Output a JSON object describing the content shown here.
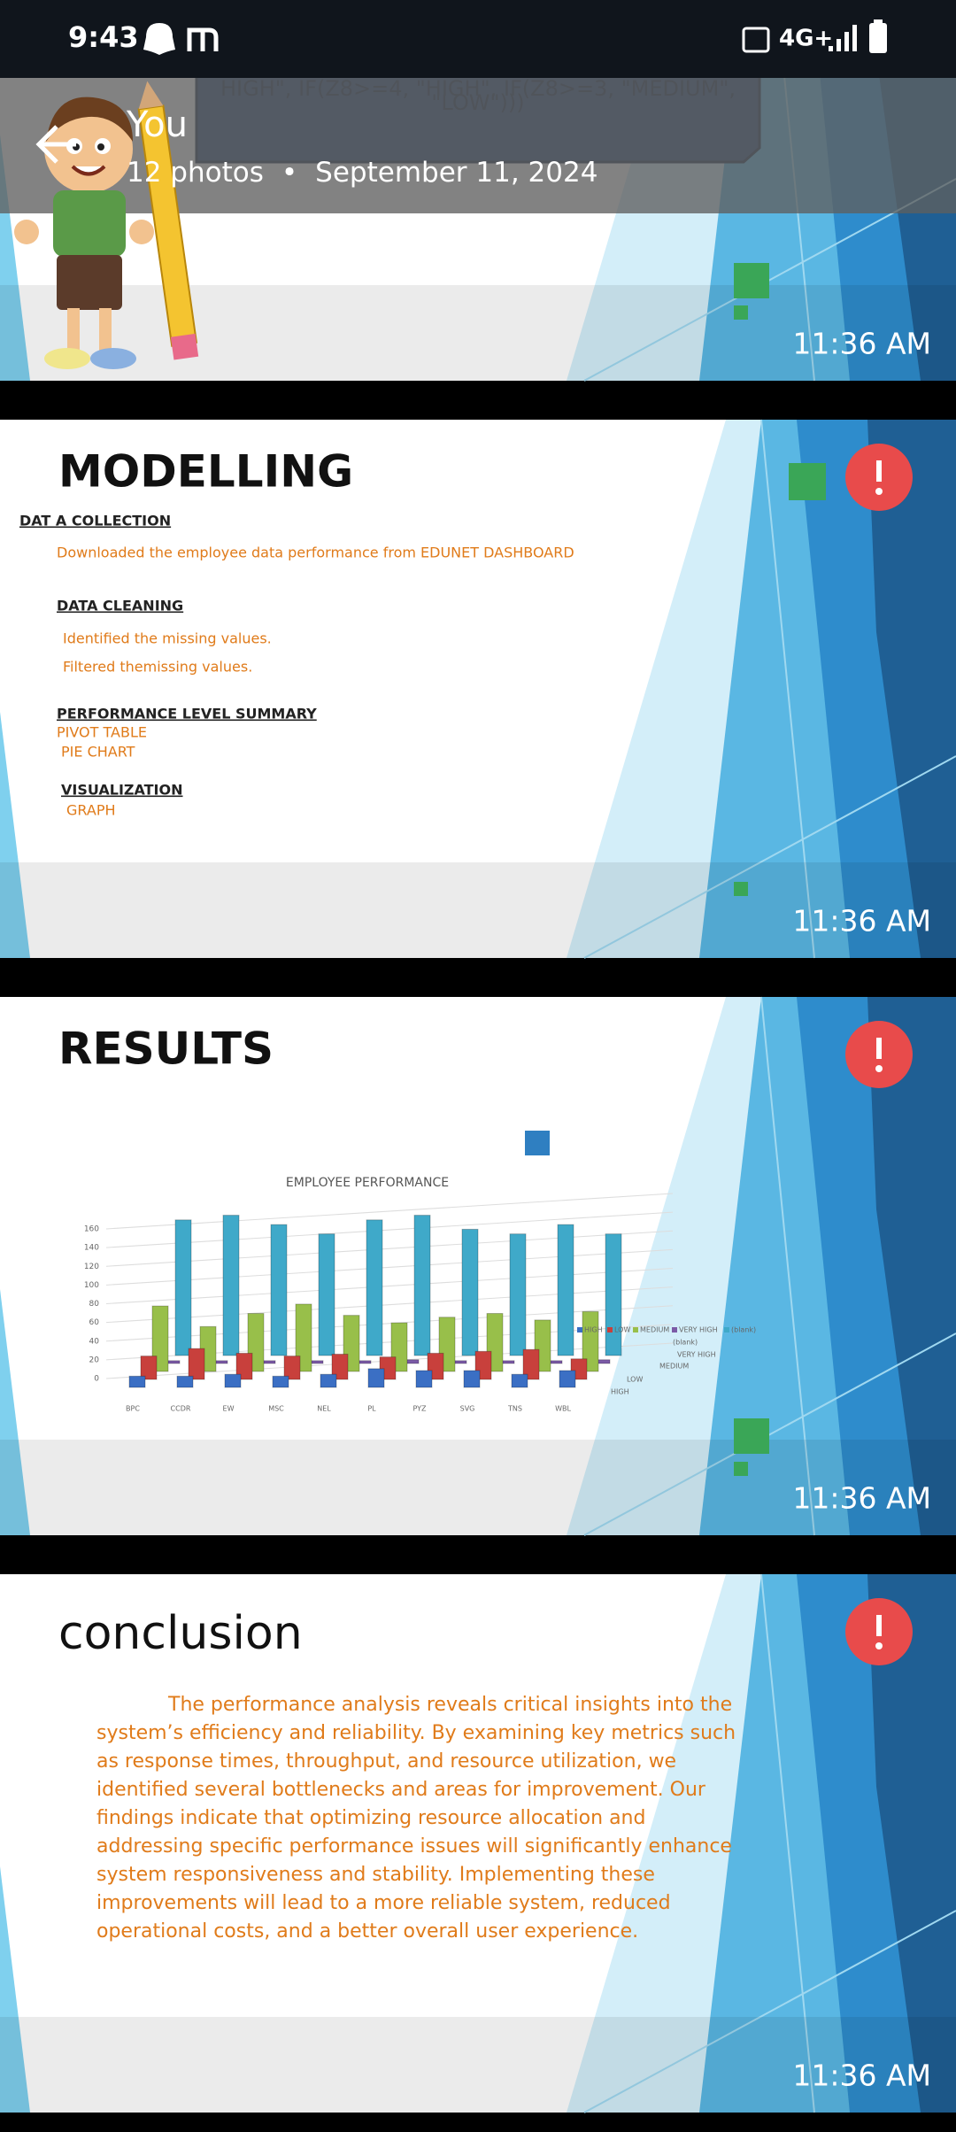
{
  "status_bar": {
    "time": "9:43",
    "network": "4G+"
  },
  "header": {
    "title": "You",
    "count": "12 photos",
    "separator": "•",
    "date": "September 11, 2024"
  },
  "photos": [
    {
      "time": "11:36 AM",
      "formula_lines": [
        "HIGH\", IF(Z8>=4, \"HIGH\", IF(Z8>=3, \"MEDIUM\",",
        "\"LOW\")))"
      ]
    },
    {
      "time": "11:36 AM",
      "title": "MODELLING",
      "sections": [
        {
          "heading": "DAT A COLLECTION",
          "items": [
            "Downloaded the employee data performance from EDUNET DASHBOARD"
          ]
        },
        {
          "heading": "DATA CLEANING",
          "items": [
            "Identified the missing values.",
            "Filtered themissing values."
          ]
        },
        {
          "heading": "PERFORMANCE LEVEL SUMMARY",
          "items": [
            "PIVOT TABLE",
            "PIE CHART"
          ]
        },
        {
          "heading": "VISUALIZATION",
          "items": [
            "GRAPH"
          ]
        }
      ]
    },
    {
      "time": "11:36 AM",
      "title": "RESULTS",
      "chart": {
        "type": "bar",
        "title": "EMPLOYEE PERFORMANCE",
        "categories": [
          "BPC",
          "CCDR",
          "EW",
          "MSC",
          "NEL",
          "PL",
          "PYZ",
          "SVG",
          "TNS",
          "WBL"
        ],
        "series": [
          {
            "name": "HIGH",
            "color": "#3b6fc4",
            "values": [
              12,
              12,
              14,
              12,
              14,
              20,
              18,
              18,
              14,
              18
            ]
          },
          {
            "name": "LOW",
            "color": "#c8403c",
            "values": [
              25,
              33,
              28,
              25,
              27,
              24,
              28,
              30,
              32,
              22
            ]
          },
          {
            "name": "MEDIUM",
            "color": "#98bf4a",
            "values": [
              70,
              48,
              62,
              72,
              60,
              52,
              58,
              62,
              55,
              64
            ]
          },
          {
            "name": "VERY HIGH",
            "color": "#7b5aa6",
            "values": [
              3,
              3,
              3,
              3,
              3,
              4,
              3,
              3,
              3,
              4
            ]
          },
          {
            "name": "(blank)",
            "color": "#3fa9c9",
            "values": [
              145,
              150,
              140,
              130,
              145,
              150,
              135,
              130,
              140,
              130
            ]
          }
        ],
        "depth_labels": [
          "(blank)",
          "VERY HIGH",
          "MEDIUM",
          "LOW",
          "HIGH"
        ],
        "ylim": [
          0,
          160
        ],
        "yticks": [
          0,
          20,
          40,
          60,
          80,
          100,
          120,
          140,
          160
        ],
        "grid": true
      }
    },
    {
      "time": "11:36 AM",
      "title": "conclusion",
      "paragraph_lines": [
        "The performance analysis reveals critical insights into the",
        "system’s efficiency and reliability. By examining key metrics such",
        "as response times, throughput, and resource utilization, we",
        "identified several bottlenecks and areas for improvement. Our",
        "findings indicate that optimizing resource allocation and",
        "addressing specific performance issues will significantly enhance",
        "system responsiveness and stability. Implementing these",
        "improvements will lead to a more reliable system, reduced",
        "operational costs, and a better overall user experience."
      ]
    }
  ]
}
